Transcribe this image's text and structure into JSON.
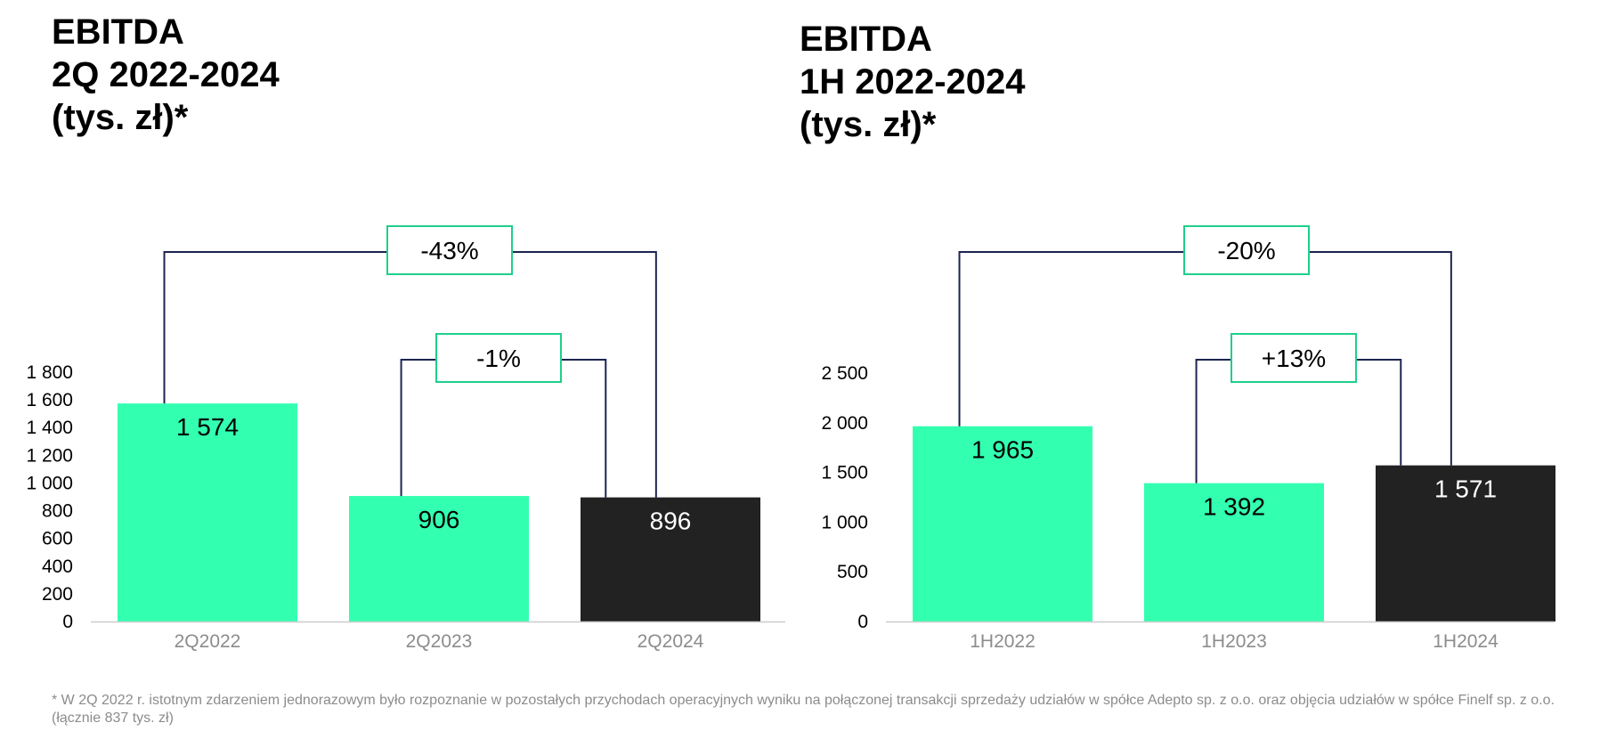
{
  "colors": {
    "bar_primary": "#33ffb0",
    "bar_current": "#222222",
    "connector": "#1c2550",
    "badge_border": "#1fcf8a",
    "axis_line": "#cccccc",
    "tick_text": "#8c8c8c",
    "footnote_text": "#8c8c8c"
  },
  "chart_data": [
    {
      "type": "bar",
      "title_lines": [
        "EBITDA",
        "2Q 2022-2024",
        "(tys. zł)*"
      ],
      "categories": [
        "2Q2022",
        "2Q2023",
        "2Q2024"
      ],
      "values": [
        1574,
        906,
        896
      ],
      "value_labels": [
        "1 574",
        "906",
        "896"
      ],
      "bar_colors": [
        "#33ffb0",
        "#33ffb0",
        "#222222"
      ],
      "label_colors": [
        "#000000",
        "#000000",
        "#ffffff"
      ],
      "ylim": [
        0,
        1800
      ],
      "yticks": [
        0,
        200,
        400,
        600,
        800,
        1000,
        1200,
        1400,
        1600,
        1800
      ],
      "ytick_labels": [
        "0",
        "200",
        "400",
        "600",
        "800",
        "1 000",
        "1 200",
        "1 400",
        "1 600",
        "1 800"
      ],
      "grid": false,
      "comparisons": [
        {
          "from": 0,
          "to": 2,
          "label": "-43%"
        },
        {
          "from": 1,
          "to": 2,
          "label": "-1%"
        }
      ]
    },
    {
      "type": "bar",
      "title_lines": [
        "EBITDA",
        "1H 2022-2024",
        "(tys. zł)*"
      ],
      "categories": [
        "1H2022",
        "1H2023",
        "1H2024"
      ],
      "values": [
        1965,
        1392,
        1571
      ],
      "value_labels": [
        "1 965",
        "1 392",
        "1 571"
      ],
      "bar_colors": [
        "#33ffb0",
        "#33ffb0",
        "#222222"
      ],
      "label_colors": [
        "#000000",
        "#000000",
        "#ffffff"
      ],
      "ylim": [
        0,
        2500
      ],
      "yticks": [
        0,
        500,
        1000,
        1500,
        2000,
        2500
      ],
      "ytick_labels": [
        "0",
        "500",
        "1 000",
        "1 500",
        "2 000",
        "2 500"
      ],
      "grid": false,
      "comparisons": [
        {
          "from": 0,
          "to": 2,
          "label": "-20%"
        },
        {
          "from": 1,
          "to": 2,
          "label": "+13%"
        }
      ]
    }
  ],
  "footnote": "* W 2Q 2022 r. istotnym zdarzeniem jednorazowym było rozpoznanie w pozostałych przychodach operacyjnych wyniku na połączonej transakcji sprzedaży udziałów w spółce Adepto sp. z o.o. oraz objęcia udziałów w spółce Finelf sp. z o.o. (łącznie 837 tys. zł)"
}
